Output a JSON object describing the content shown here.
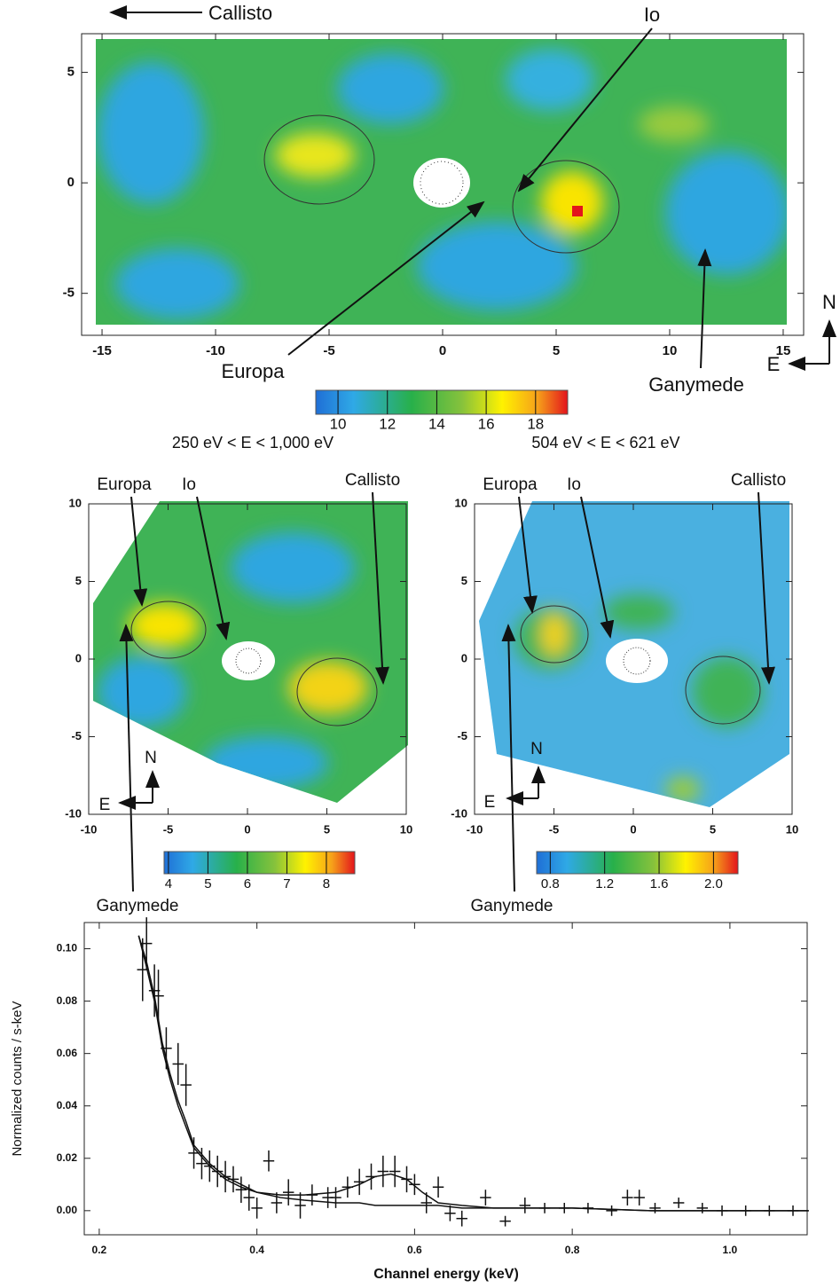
{
  "chart_data": [
    {
      "type": "image",
      "xlim": [
        -15.9,
        15.9
      ],
      "xticks": [
        -15,
        -10,
        -5,
        0,
        5,
        10,
        15
      ],
      "ylim": [
        -6.9,
        6.75
      ],
      "yticks": [
        -5,
        0,
        5
      ],
      "labels": [
        "Callisto",
        "Io",
        "Europa",
        "Ganymede"
      ],
      "compass": [
        "N",
        "E"
      ],
      "colorbar": {
        "lim": [
          9.1,
          19.3
        ],
        "ticks": [
          10,
          12,
          14,
          16,
          18
        ]
      }
    },
    {
      "type": "image",
      "title": "250 eV < E < 1,000 eV",
      "xlim": [
        -10,
        10
      ],
      "xticks": [
        -10,
        -5,
        0,
        5,
        10
      ],
      "ylim": [
        -10,
        10
      ],
      "yticks": [
        -10,
        -5,
        0,
        5,
        10
      ],
      "labels": [
        "Europa",
        "Io",
        "Callisto",
        "Ganymede"
      ],
      "compass": [
        "N",
        "E"
      ],
      "colorbar": {
        "lim": [
          3.89,
          8.72
        ],
        "ticks": [
          4,
          5,
          6,
          7,
          8
        ]
      }
    },
    {
      "type": "image",
      "title": "504 eV < E < 621 eV",
      "xlim": [
        -10,
        10
      ],
      "xticks": [
        -10,
        -5,
        0,
        5,
        10
      ],
      "ylim": [
        -10,
        10
      ],
      "yticks": [
        -10,
        -5,
        0,
        5,
        10
      ],
      "labels": [
        "Europa",
        "Io",
        "Callisto",
        "Ganymede"
      ],
      "compass": [
        "N",
        "E"
      ],
      "colorbar": {
        "lim": [
          0.7,
          2.18
        ],
        "ticks": [
          0.8,
          1.2,
          1.6,
          {
            "value": 2,
            "label": "2.0"
          }
        ]
      }
    },
    {
      "type": "scatter",
      "xlabel": "Channel energy (keV)",
      "ylabel": "Normalized counts / s-keV",
      "xlim": [
        0.181,
        1.098
      ],
      "xticks": [
        0.2,
        0.4,
        0.6,
        0.8,
        {
          "value": 1,
          "label": "1.0"
        }
      ],
      "ylim": [
        -0.0092,
        0.11
      ],
      "yticks": [
        {
          "value": 0,
          "label": "0.00"
        },
        {
          "value": 0.02,
          "label": "0.02"
        },
        {
          "value": 0.04,
          "label": "0.04"
        },
        {
          "value": 0.06,
          "label": "0.06"
        },
        {
          "value": 0.08,
          "label": "0.08"
        },
        {
          "value": 0.1,
          "label": "0.10"
        }
      ],
      "x": [
        0.255,
        0.26,
        0.27,
        0.275,
        0.285,
        0.3,
        0.31,
        0.32,
        0.33,
        0.34,
        0.35,
        0.36,
        0.37,
        0.38,
        0.39,
        0.4,
        0.415,
        0.425,
        0.44,
        0.455,
        0.47,
        0.49,
        0.5,
        0.515,
        0.53,
        0.545,
        0.56,
        0.575,
        0.59,
        0.6,
        0.615,
        0.63,
        0.645,
        0.66,
        0.69,
        0.715,
        0.74,
        0.765,
        0.79,
        0.82,
        0.85,
        0.87,
        0.885,
        0.905,
        0.935,
        0.965,
        0.99,
        1.02,
        1.05,
        1.08
      ],
      "values": [
        0.092,
        0.102,
        0.084,
        0.082,
        0.062,
        0.056,
        0.048,
        0.022,
        0.018,
        0.017,
        0.015,
        0.013,
        0.012,
        0.008,
        0.005,
        0.001,
        0.019,
        0.003,
        0.007,
        0.002,
        0.006,
        0.005,
        0.005,
        0.009,
        0.011,
        0.013,
        0.015,
        0.015,
        0.012,
        0.01,
        0.003,
        0.009,
        -0.001,
        -0.003,
        0.005,
        -0.004,
        0.002,
        0.001,
        0.001,
        0.001,
        0.0,
        0.005,
        0.005,
        0.001,
        0.003,
        0.001,
        0.0,
        0.0,
        0.0,
        0.0
      ],
      "yerr": [
        0.012,
        0.01,
        0.01,
        0.01,
        0.008,
        0.008,
        0.008,
        0.006,
        0.006,
        0.006,
        0.006,
        0.006,
        0.005,
        0.005,
        0.005,
        0.004,
        0.004,
        0.004,
        0.005,
        0.005,
        0.004,
        0.004,
        0.004,
        0.004,
        0.005,
        0.005,
        0.006,
        0.006,
        0.005,
        0.004,
        0.004,
        0.004,
        0.003,
        0.003,
        0.003,
        0.002,
        0.003,
        0.002,
        0.002,
        0.002,
        0.002,
        0.003,
        0.003,
        0.002,
        0.002,
        0.002,
        0.002,
        0.002,
        0.002,
        0.002
      ],
      "xerr": 0.007,
      "model_x": [
        0.25,
        0.26,
        0.27,
        0.28,
        0.29,
        0.3,
        0.31,
        0.32,
        0.34,
        0.36,
        0.38,
        0.4,
        0.43,
        0.46,
        0.5,
        0.53,
        0.55,
        0.57,
        0.59,
        0.61,
        0.63,
        0.66,
        0.7,
        0.75,
        0.8,
        0.9,
        1.0,
        1.1
      ],
      "lines": [
        {
          "values": [
            0.105,
            0.095,
            0.082,
            0.064,
            0.052,
            0.042,
            0.034,
            0.025,
            0.018,
            0.013,
            0.01,
            0.007,
            0.006,
            0.006,
            0.007,
            0.01,
            0.013,
            0.014,
            0.012,
            0.007,
            0.003,
            0.002,
            0.001,
            0.001,
            0.001,
            0.0,
            0.0,
            0.0
          ]
        },
        {
          "values": [
            0.105,
            0.093,
            0.08,
            0.062,
            0.05,
            0.04,
            0.032,
            0.024,
            0.017,
            0.012,
            0.009,
            0.007,
            0.005,
            0.004,
            0.003,
            0.003,
            0.002,
            0.002,
            0.002,
            0.002,
            0.002,
            0.001,
            0.001,
            0.001,
            0.001,
            0.0,
            0.0,
            0.0
          ]
        }
      ]
    }
  ]
}
